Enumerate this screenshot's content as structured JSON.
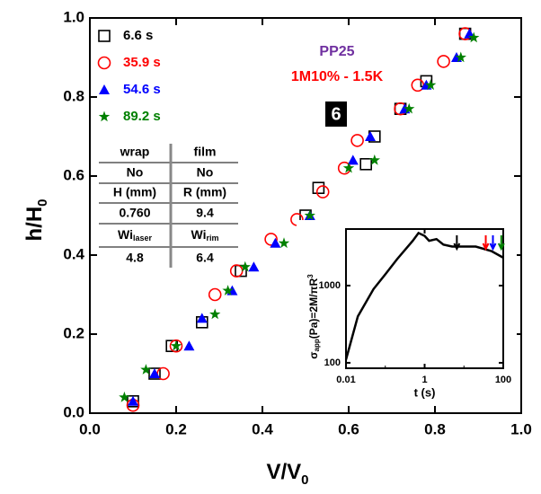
{
  "chart_data": [
    {
      "type": "scatter",
      "x_label": {
        "text": "V/V",
        "sub": "0"
      },
      "y_label": {
        "text": "h/H",
        "sub": "0"
      },
      "xlim": [
        0,
        1
      ],
      "ylim": [
        0,
        1
      ],
      "xticks": [
        {
          "value": 0,
          "label": "0.0"
        },
        {
          "value": 0.2,
          "label": "0.2"
        },
        {
          "value": 0.4,
          "label": "0.4"
        },
        {
          "value": 0.6,
          "label": "0.6"
        },
        {
          "value": 0.8,
          "label": "0.8"
        },
        {
          "value": 1,
          "label": "1.0"
        }
      ],
      "yticks": [
        {
          "value": 0,
          "label": "0.0"
        },
        {
          "value": 0.2,
          "label": "0.2"
        },
        {
          "value": 0.4,
          "label": "0.4"
        },
        {
          "value": 0.6,
          "label": "0.6"
        },
        {
          "value": 0.8,
          "label": "0.8"
        },
        {
          "value": 1,
          "label": "1.0"
        }
      ],
      "legend": "top-left",
      "series": [
        {
          "name": "6.6 s",
          "color": "#000000",
          "marker": "square",
          "x": [
            0.1,
            0.15,
            0.19,
            0.26,
            0.35,
            0.5,
            0.53,
            0.64,
            0.66,
            0.72,
            0.78,
            0.87
          ],
          "values": [
            0.03,
            0.1,
            0.17,
            0.23,
            0.36,
            0.5,
            0.57,
            0.63,
            0.7,
            0.77,
            0.84,
            0.96
          ]
        },
        {
          "name": "35.9 s",
          "color": "#ff0000",
          "marker": "circle",
          "x": [
            0.1,
            0.17,
            0.2,
            0.29,
            0.34,
            0.42,
            0.48,
            0.54,
            0.59,
            0.62,
            0.72,
            0.76,
            0.82,
            0.87
          ],
          "values": [
            0.02,
            0.1,
            0.17,
            0.3,
            0.36,
            0.44,
            0.49,
            0.56,
            0.62,
            0.69,
            0.77,
            0.83,
            0.89,
            0.96
          ]
        },
        {
          "name": "54.6 s",
          "color": "#0000ff",
          "marker": "triangle",
          "x": [
            0.1,
            0.15,
            0.23,
            0.26,
            0.33,
            0.38,
            0.43,
            0.51,
            0.61,
            0.65,
            0.73,
            0.78,
            0.85,
            0.88
          ],
          "values": [
            0.03,
            0.1,
            0.17,
            0.24,
            0.31,
            0.37,
            0.43,
            0.5,
            0.64,
            0.7,
            0.77,
            0.83,
            0.9,
            0.96
          ]
        },
        {
          "name": "89.2 s",
          "color": "#008000",
          "marker": "star",
          "x": [
            0.08,
            0.13,
            0.2,
            0.29,
            0.32,
            0.36,
            0.45,
            0.51,
            0.6,
            0.66,
            0.74,
            0.79,
            0.86,
            0.89
          ],
          "values": [
            0.04,
            0.11,
            0.17,
            0.25,
            0.31,
            0.37,
            0.43,
            0.5,
            0.62,
            0.64,
            0.77,
            0.83,
            0.9,
            0.95
          ]
        }
      ],
      "annotations": [
        {
          "text": "PP25",
          "color": "#7030a0"
        },
        {
          "text": "1M10% - 1.5K",
          "color": "#ff0000"
        },
        {
          "text": "6",
          "color": "#ffffff"
        }
      ],
      "table": {
        "header": [
          "wrap",
          "film"
        ],
        "rows": [
          [
            "No",
            "No"
          ],
          [
            "H (mm)",
            "R (mm)"
          ],
          [
            "0.760",
            "9.4"
          ],
          [
            {
              "text": "Wi",
              "sub": "laser"
            },
            {
              "text": "Wi",
              "sub": "rim"
            }
          ],
          [
            "4.8",
            "6.4"
          ]
        ]
      }
    },
    {
      "type": "line",
      "x_label": "t (s)",
      "y_label": {
        "a": "σ",
        "a_sub": "app",
        "b": "(Pa)=2M/πR",
        "b_sup": "3"
      },
      "xlog": true,
      "ylog": true,
      "xlim": [
        0.01,
        100
      ],
      "ylim": [
        85,
        5400
      ],
      "xticks": [
        0.01,
        1,
        100
      ],
      "yticks": [
        100,
        1000
      ],
      "color": "#000000",
      "x": [
        0.01,
        0.02,
        0.05,
        0.1,
        0.2,
        0.5,
        0.7,
        1,
        1.3,
        2,
        3,
        5,
        10,
        20,
        50,
        100
      ],
      "values": [
        110,
        400,
        900,
        1400,
        2200,
        3800,
        4800,
        4400,
        3800,
        4000,
        3400,
        3200,
        3200,
        3200,
        2800,
        2300
      ],
      "arrows": [
        {
          "x": 6.6,
          "color": "#000000"
        },
        {
          "x": 35.9,
          "color": "#ff0000"
        },
        {
          "x": 54.6,
          "color": "#0000ff"
        },
        {
          "x": 89.2,
          "color": "#008000"
        }
      ]
    }
  ]
}
